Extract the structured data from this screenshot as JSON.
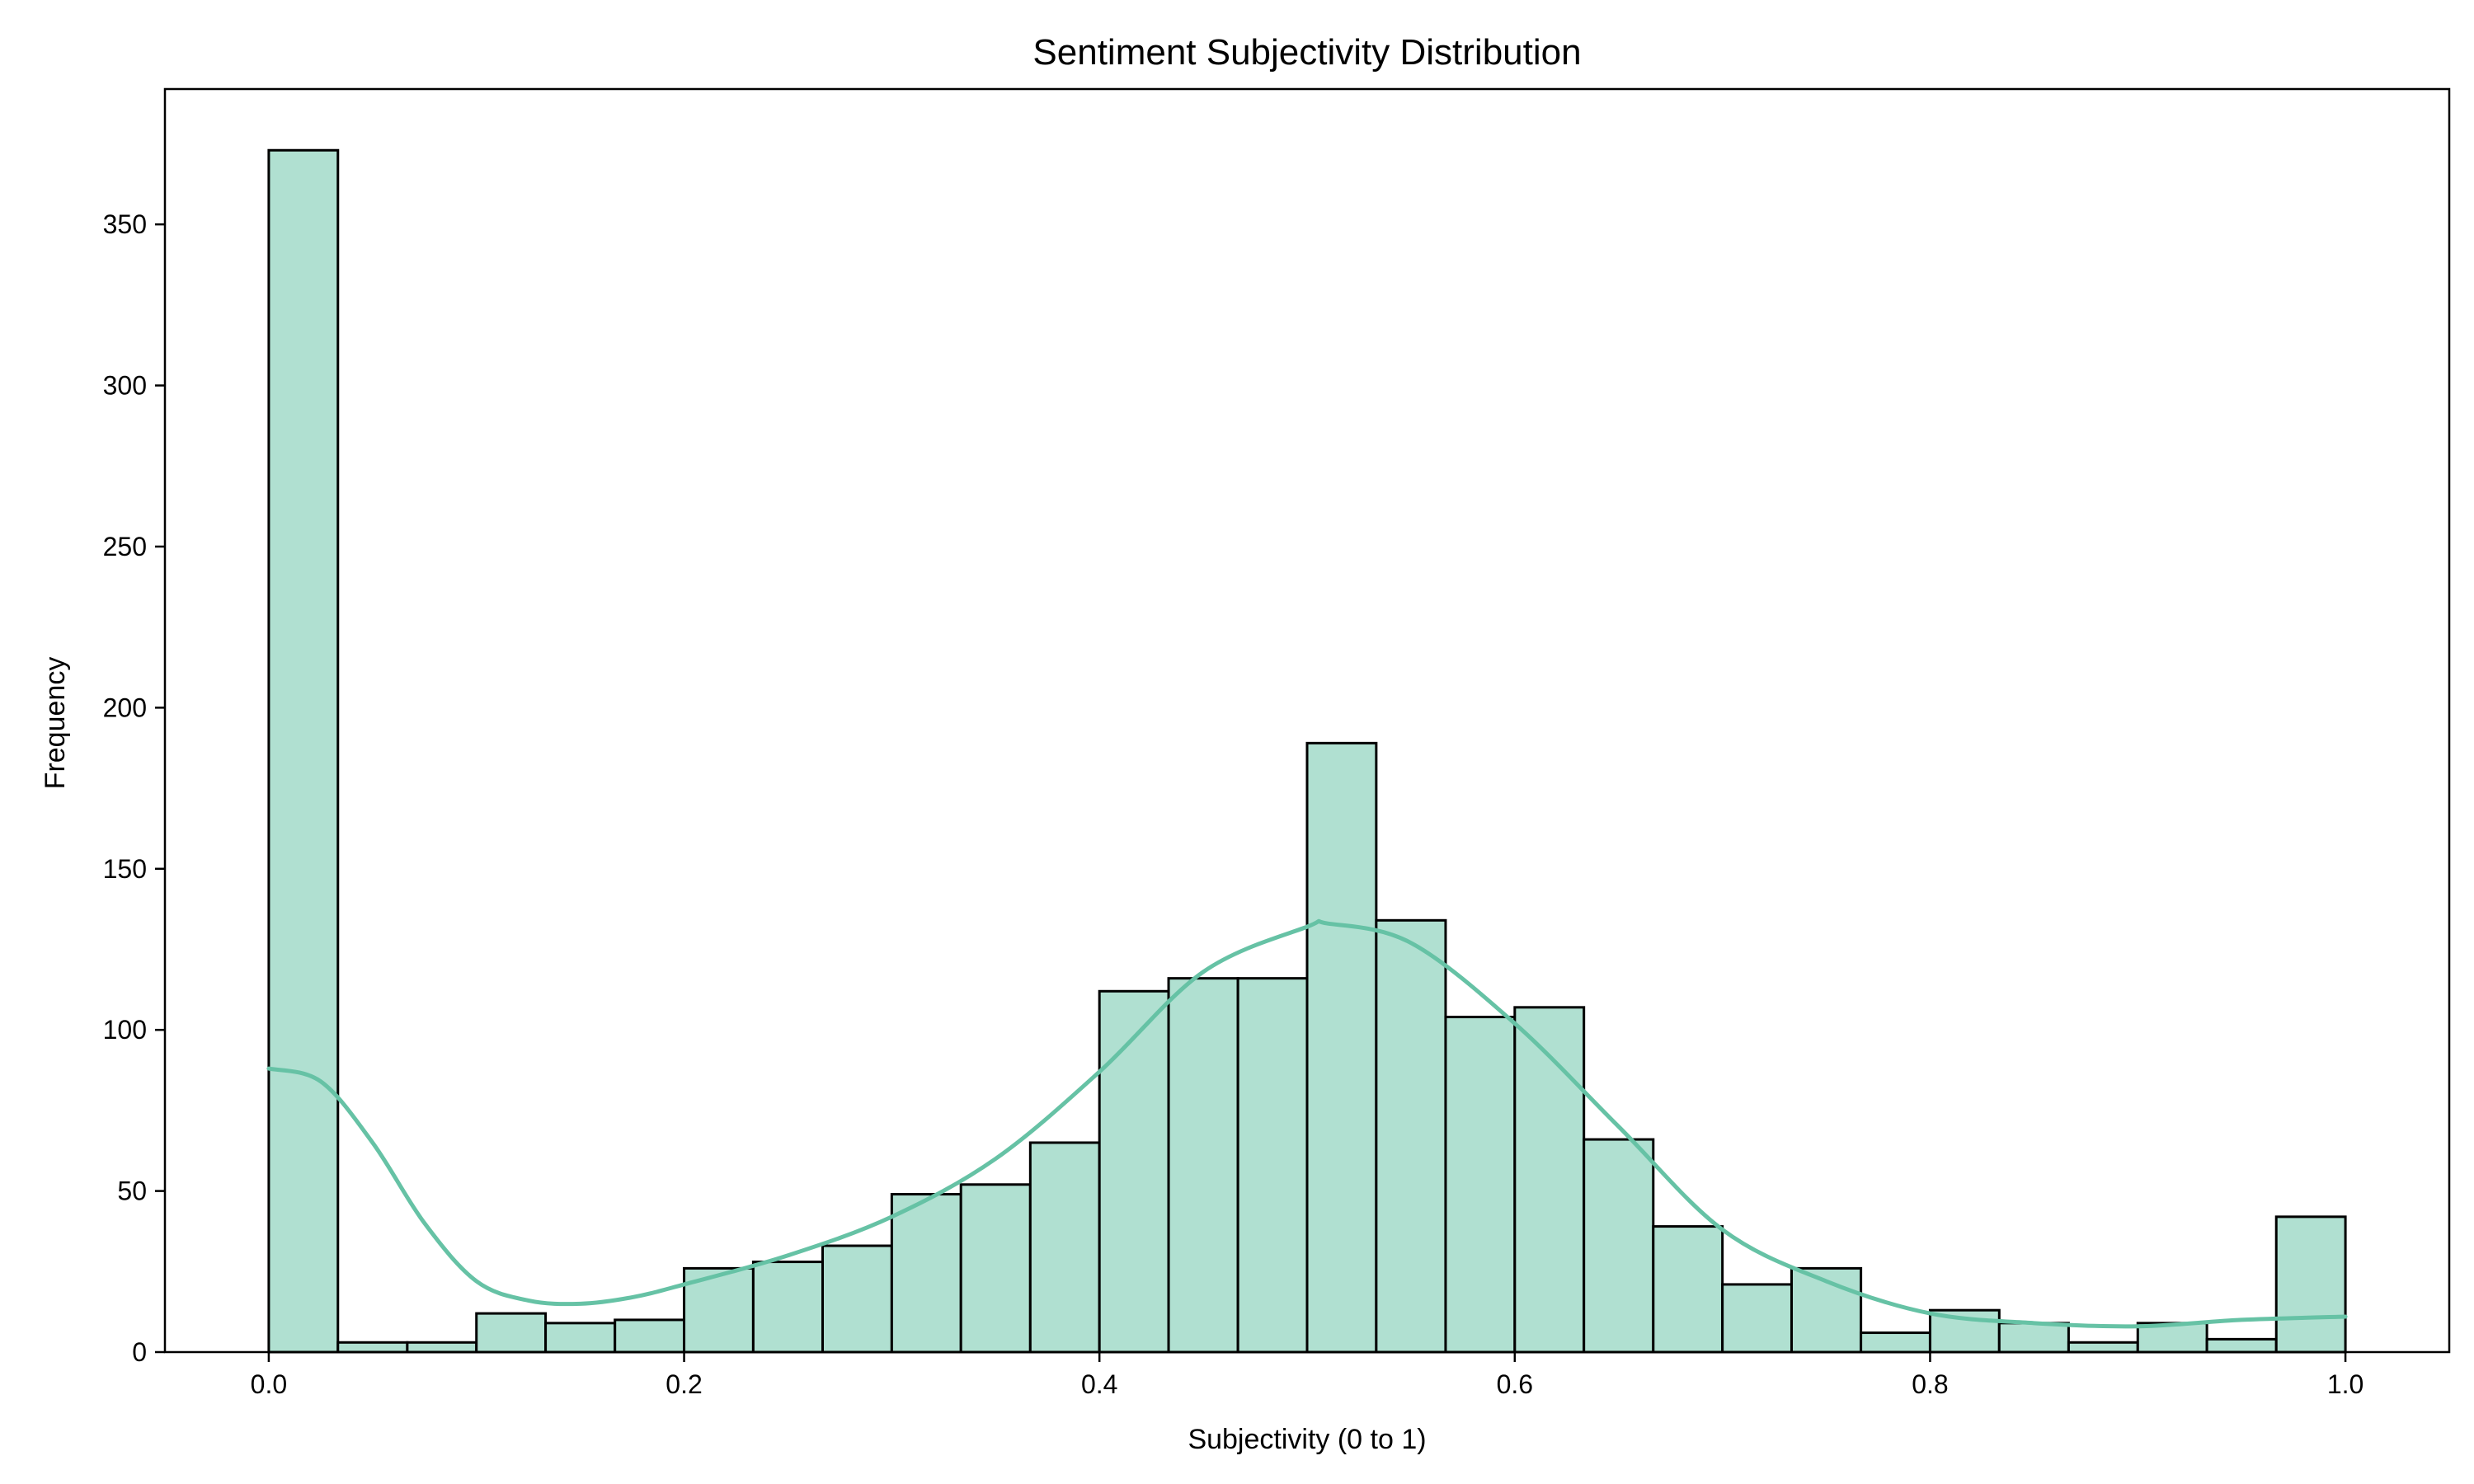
{
  "chart_data": {
    "type": "bar",
    "title": "Sentiment Subjectivity Distribution",
    "xlabel": "Subjectivity (0 to 1)",
    "ylabel": "Frequency",
    "xlim": [
      -0.05,
      1.05
    ],
    "ylim": [
      0,
      392
    ],
    "xticks": [
      0.0,
      0.2,
      0.4,
      0.6,
      0.8,
      1.0
    ],
    "xtick_labels": [
      "0.0",
      "0.2",
      "0.4",
      "0.6",
      "0.8",
      "1.0"
    ],
    "yticks": [
      0,
      50,
      100,
      150,
      200,
      250,
      300,
      350
    ],
    "ytick_labels": [
      "0",
      "50",
      "100",
      "150",
      "200",
      "250",
      "300",
      "350"
    ],
    "bin_edges": [
      0.0,
      0.0333,
      0.0667,
      0.1,
      0.1333,
      0.1667,
      0.2,
      0.2333,
      0.2667,
      0.3,
      0.3333,
      0.3667,
      0.4,
      0.4333,
      0.4667,
      0.5,
      0.5333,
      0.5667,
      0.6,
      0.6333,
      0.6667,
      0.7,
      0.7333,
      0.7667,
      0.8,
      0.8333,
      0.8667,
      0.9,
      0.9333,
      0.9667,
      1.0
    ],
    "values": [
      373,
      3,
      3,
      12,
      9,
      10,
      26,
      28,
      33,
      49,
      52,
      65,
      112,
      116,
      116,
      189,
      134,
      104,
      107,
      66,
      39,
      21,
      26,
      6,
      13,
      9,
      3,
      9,
      4,
      42
    ],
    "kde": {
      "x": [
        0.0,
        0.025,
        0.05,
        0.075,
        0.1,
        0.125,
        0.15,
        0.175,
        0.2,
        0.25,
        0.3,
        0.35,
        0.4,
        0.45,
        0.5,
        0.51,
        0.55,
        0.6,
        0.65,
        0.7,
        0.75,
        0.8,
        0.85,
        0.9,
        0.95,
        1.0
      ],
      "y": [
        88,
        84,
        65,
        40,
        22,
        16,
        15,
        17,
        21,
        30,
        42,
        60,
        87,
        118,
        132,
        133,
        127,
        102,
        70,
        38,
        22,
        12,
        9,
        8,
        10,
        11
      ]
    },
    "grid": false,
    "legend": "none",
    "colors": {
      "bar_fill": "#b0e0d1",
      "bar_edge": "#000000",
      "kde_line": "#66c2a5",
      "axes": "#000000",
      "background": "#ffffff"
    }
  }
}
